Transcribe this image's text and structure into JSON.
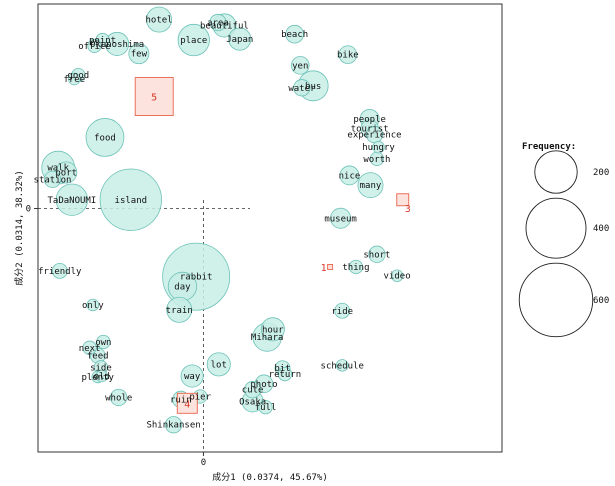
{
  "chart_data": {
    "type": "scatter",
    "xlabel": "成分1 (0.0374, 45.67%)",
    "ylabel": "成分2 (0.0314, 38.32%)",
    "xlim": [
      -2.05,
      3.7
    ],
    "ylim": [
      -2.5,
      2.1
    ],
    "x_ticks": [
      0
    ],
    "y_ticks": [
      0
    ],
    "colors": {
      "bubble_fill": "#c8ede6",
      "bubble_stroke": "#6cc2b8",
      "cluster_fill": "#fde3dd",
      "cluster_stroke": "#e8644c",
      "cluster_text": "#d63a2a"
    },
    "legend": {
      "title": "Frequency:",
      "placement": "right",
      "values": [
        200,
        400,
        600
      ]
    },
    "points": [
      {
        "label": "hotel",
        "x": -0.55,
        "y": 1.94,
        "freq": 70
      },
      {
        "label": "area",
        "x": 0.18,
        "y": 1.91,
        "freq": 30
      },
      {
        "label": "beautiful",
        "x": 0.26,
        "y": 1.88,
        "freq": 60
      },
      {
        "label": "place",
        "x": -0.12,
        "y": 1.73,
        "freq": 110
      },
      {
        "label": "Japan",
        "x": 0.45,
        "y": 1.74,
        "freq": 55
      },
      {
        "label": "beach",
        "x": 1.13,
        "y": 1.79,
        "freq": 35
      },
      {
        "label": "point",
        "x": -1.25,
        "y": 1.73,
        "freq": 20
      },
      {
        "label": "office",
        "x": -1.35,
        "y": 1.67,
        "freq": 20
      },
      {
        "label": "Okunoshima",
        "x": -1.07,
        "y": 1.69,
        "freq": 60
      },
      {
        "label": "few",
        "x": -0.8,
        "y": 1.59,
        "freq": 45
      },
      {
        "label": "bike",
        "x": 1.79,
        "y": 1.58,
        "freq": 35
      },
      {
        "label": "yen",
        "x": 1.2,
        "y": 1.47,
        "freq": 35
      },
      {
        "label": "good",
        "x": -1.55,
        "y": 1.37,
        "freq": 20
      },
      {
        "label": "free",
        "x": -1.6,
        "y": 1.33,
        "freq": 15
      },
      {
        "label": "water",
        "x": 1.22,
        "y": 1.24,
        "freq": 30
      },
      {
        "label": "bus",
        "x": 1.36,
        "y": 1.26,
        "freq": 100
      },
      {
        "label": "people",
        "x": 2.06,
        "y": 0.92,
        "freq": 40
      },
      {
        "label": "tourist",
        "x": 2.06,
        "y": 0.82,
        "freq": 35
      },
      {
        "label": "experience",
        "x": 2.12,
        "y": 0.76,
        "freq": 30
      },
      {
        "label": "food",
        "x": -1.22,
        "y": 0.73,
        "freq": 160
      },
      {
        "label": "hungry",
        "x": 2.17,
        "y": 0.63,
        "freq": 15
      },
      {
        "label": "worth",
        "x": 2.15,
        "y": 0.51,
        "freq": 20
      },
      {
        "label": "walk",
        "x": -1.8,
        "y": 0.42,
        "freq": 120
      },
      {
        "label": "port",
        "x": -1.7,
        "y": 0.37,
        "freq": 50
      },
      {
        "label": "station",
        "x": -1.87,
        "y": 0.3,
        "freq": 30
      },
      {
        "label": "nice",
        "x": 1.81,
        "y": 0.34,
        "freq": 40
      },
      {
        "label": "many",
        "x": 2.07,
        "y": 0.24,
        "freq": 70
      },
      {
        "label": "island",
        "x": -0.9,
        "y": 0.09,
        "freq": 420
      },
      {
        "label": "TaDaNOUMI",
        "x": -1.63,
        "y": 0.09,
        "freq": 110
      },
      {
        "label": "museum",
        "x": 1.7,
        "y": -0.1,
        "freq": 45
      },
      {
        "label": "short",
        "x": 2.15,
        "y": -0.47,
        "freq": 30
      },
      {
        "label": "thing",
        "x": 1.89,
        "y": -0.6,
        "freq": 20
      },
      {
        "label": "video",
        "x": 2.4,
        "y": -0.69,
        "freq": 15
      },
      {
        "label": "friendly",
        "x": -1.78,
        "y": -0.64,
        "freq": 25
      },
      {
        "label": "rabbit",
        "x": -0.09,
        "y": -0.7,
        "freq": 500
      },
      {
        "label": "day",
        "x": -0.26,
        "y": -0.8,
        "freq": 90
      },
      {
        "label": "only",
        "x": -1.37,
        "y": -0.99,
        "freq": 15
      },
      {
        "label": "ride",
        "x": 1.72,
        "y": -1.05,
        "freq": 25
      },
      {
        "label": "train",
        "x": -0.3,
        "y": -1.04,
        "freq": 70
      },
      {
        "label": "hour",
        "x": 0.86,
        "y": -1.24,
        "freq": 60
      },
      {
        "label": "Mihara",
        "x": 0.79,
        "y": -1.32,
        "freq": 90
      },
      {
        "label": "own",
        "x": -1.24,
        "y": -1.37,
        "freq": 20
      },
      {
        "label": "next",
        "x": -1.41,
        "y": -1.43,
        "freq": 20
      },
      {
        "label": "feed",
        "x": -1.31,
        "y": -1.51,
        "freq": 25
      },
      {
        "label": "schedule",
        "x": 1.72,
        "y": -1.61,
        "freq": 15
      },
      {
        "label": "bit",
        "x": 0.98,
        "y": -1.64,
        "freq": 25
      },
      {
        "label": "lot",
        "x": 0.19,
        "y": -1.6,
        "freq": 60
      },
      {
        "label": "return",
        "x": 1.01,
        "y": -1.7,
        "freq": 20
      },
      {
        "label": "side",
        "x": -1.27,
        "y": -1.63,
        "freq": 20
      },
      {
        "label": "way",
        "x": -0.14,
        "y": -1.72,
        "freq": 55
      },
      {
        "label": "plenty",
        "x": -1.31,
        "y": -1.73,
        "freq": 15
      },
      {
        "label": "old",
        "x": -1.26,
        "y": -1.72,
        "freq": 15
      },
      {
        "label": "photo",
        "x": 0.75,
        "y": -1.8,
        "freq": 35
      },
      {
        "label": "cute",
        "x": 0.61,
        "y": -1.86,
        "freq": 30
      },
      {
        "label": "ruin",
        "x": -0.28,
        "y": -1.96,
        "freq": 30
      },
      {
        "label": "pier",
        "x": -0.04,
        "y": -1.93,
        "freq": 20
      },
      {
        "label": "whole",
        "x": -1.05,
        "y": -1.94,
        "freq": 30
      },
      {
        "label": "Osaka",
        "x": 0.61,
        "y": -1.98,
        "freq": 50
      },
      {
        "label": "full",
        "x": 0.77,
        "y": -2.04,
        "freq": 20
      },
      {
        "label": "Shinkansen",
        "x": -0.37,
        "y": -2.22,
        "freq": 30
      }
    ],
    "clusters": [
      {
        "id": "1",
        "x": 1.57,
        "y": -0.6,
        "size": 5
      },
      {
        "id": "3",
        "x": 2.47,
        "y": 0.09,
        "size": 12
      },
      {
        "id": "4",
        "x": -0.2,
        "y": -2.0,
        "size": 20
      },
      {
        "id": "5",
        "x": -0.61,
        "y": 1.15,
        "size": 38
      }
    ]
  }
}
